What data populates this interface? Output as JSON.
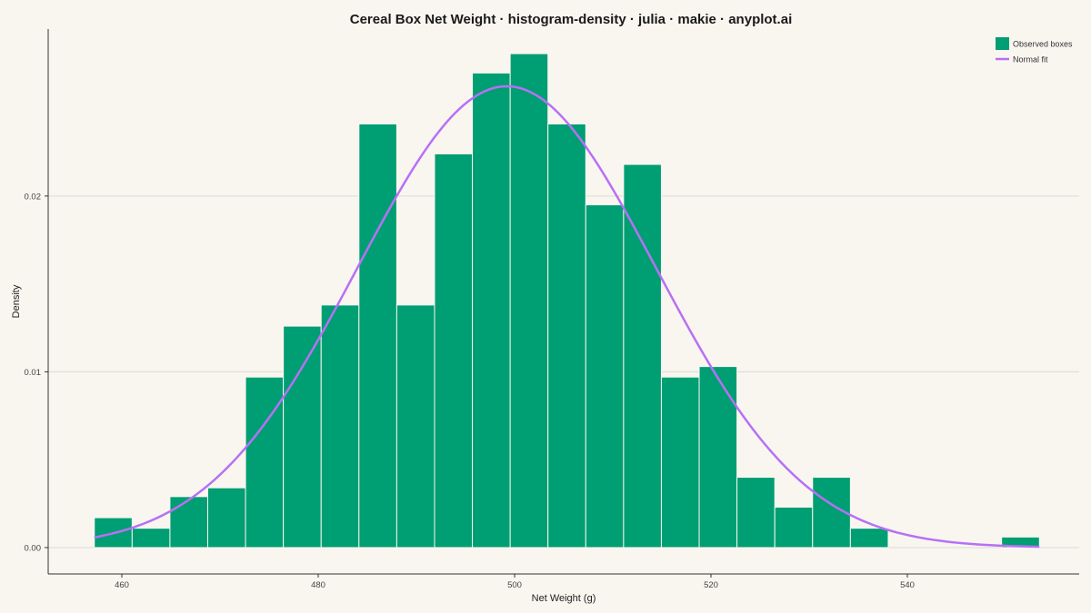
{
  "chart_data": {
    "type": "bar",
    "title": "Cereal Box Net Weight · histogram-density · julia · makie · anyplot.ai",
    "xlabel": "Net Weight (g)",
    "ylabel": "Density",
    "xlim": [
      452.5,
      557.5
    ],
    "ylim": [
      -0.0015,
      0.0295
    ],
    "xticks": [
      460,
      480,
      500,
      520,
      540
    ],
    "xtick_labels": [
      "460",
      "480",
      "500",
      "520",
      "540"
    ],
    "yticks": [
      0.0,
      0.01,
      0.02
    ],
    "ytick_labels": [
      "0.00",
      "0.01",
      "0.02"
    ],
    "grid": "horizontal",
    "legend_position": "top-right",
    "bin_edges": [
      457.2,
      461.05,
      464.9,
      468.75,
      472.6,
      476.45,
      480.3,
      484.15,
      488.0,
      491.85,
      495.7,
      499.55,
      503.4,
      507.25,
      511.1,
      514.95,
      518.8,
      522.65,
      526.5,
      530.35,
      534.2,
      538.05,
      541.9,
      545.75,
      549.6,
      553.45
    ],
    "series": [
      {
        "name": "Observed boxes",
        "kind": "histogram",
        "color": "#009E73",
        "values": [
          0.0017,
          0.0011,
          0.0029,
          0.0034,
          0.0097,
          0.0126,
          0.0138,
          0.0241,
          0.0138,
          0.0224,
          0.027,
          0.0281,
          0.0241,
          0.0195,
          0.0218,
          0.0097,
          0.0103,
          0.004,
          0.0023,
          0.004,
          0.0011,
          0.0,
          0.0,
          0.0,
          0.0006
        ]
      },
      {
        "name": "Normal fit",
        "kind": "line",
        "color": "#B870F5",
        "mean": 499.2,
        "sd": 15.2,
        "x_range": [
          457.2,
          553.45
        ]
      }
    ]
  }
}
